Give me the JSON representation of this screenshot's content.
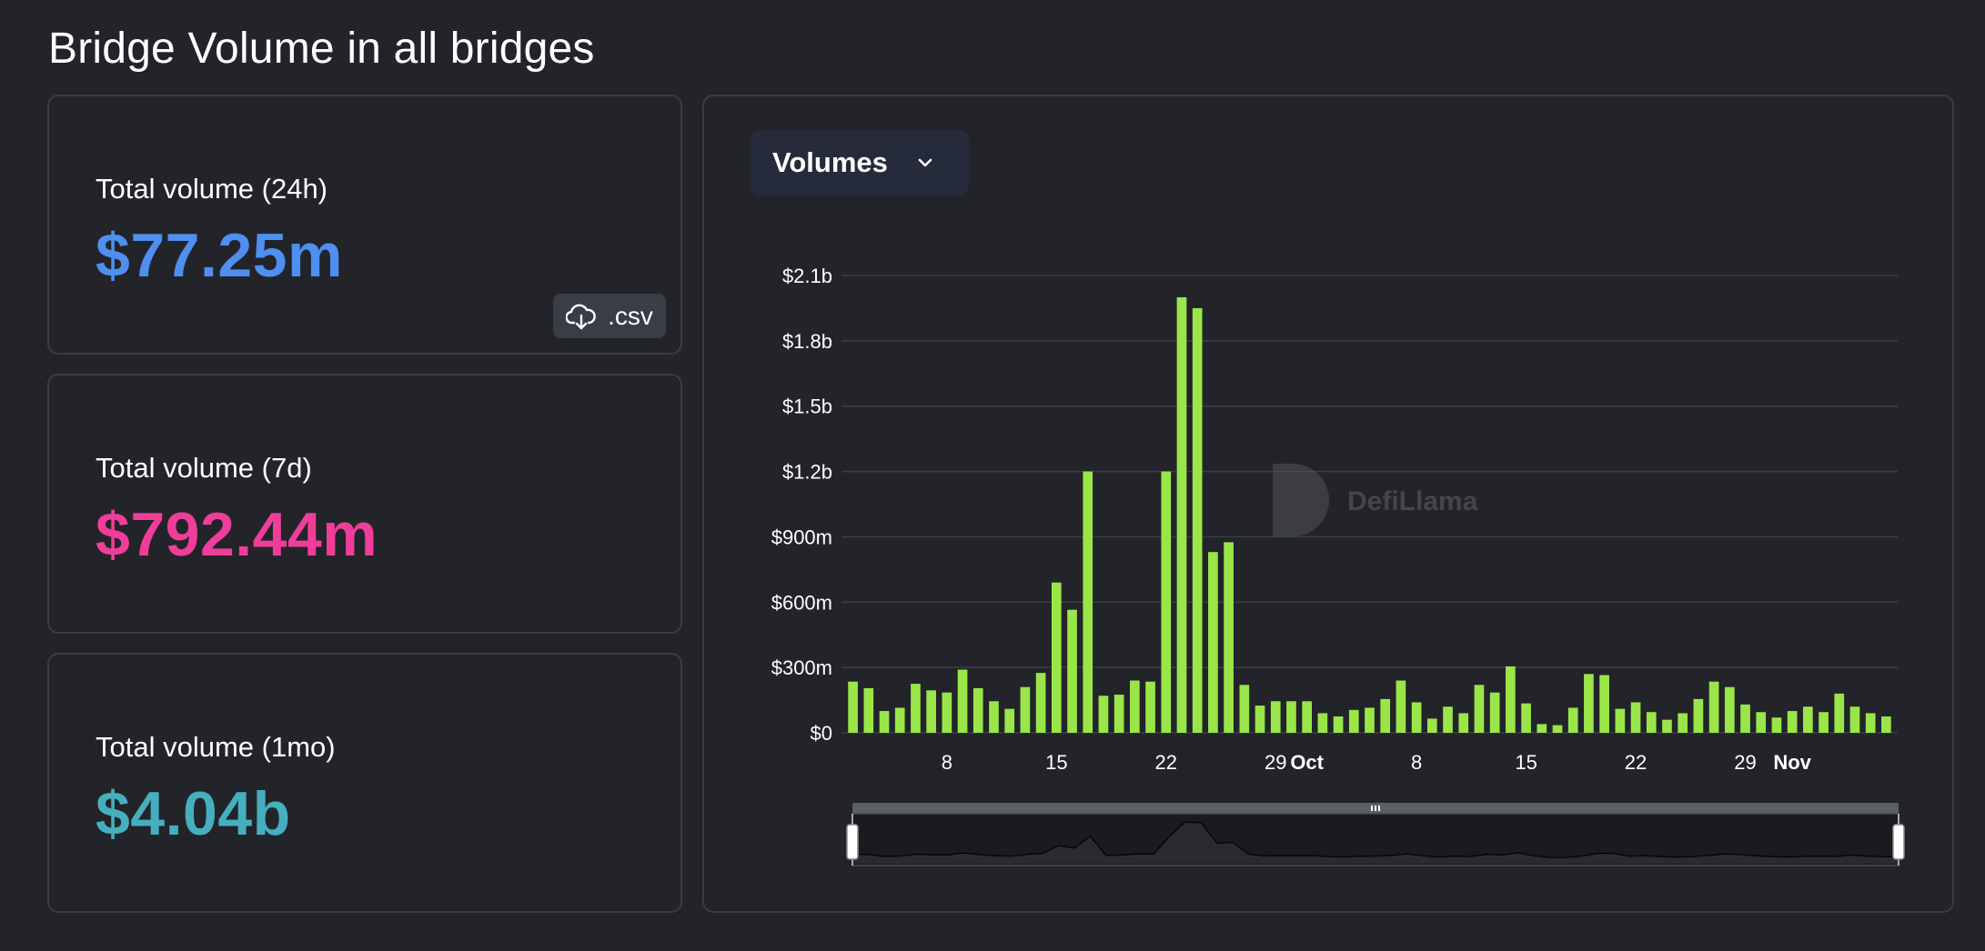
{
  "page": {
    "title": "Bridge Volume in all bridges"
  },
  "cards": [
    {
      "label": "Total volume (24h)",
      "value": "$77.25m",
      "color": "#4e8ff0"
    },
    {
      "label": "Total volume (7d)",
      "value": "$792.44m",
      "color": "#f03d9a"
    },
    {
      "label": "Total volume (1mo)",
      "value": "$4.04b",
      "color": "#45afbf"
    }
  ],
  "csv_button": {
    "label": ".csv",
    "icon": "cloud-download-icon"
  },
  "dropdown": {
    "label": "Volumes",
    "icon": "chevron-down-icon"
  },
  "watermark": {
    "text": "DefiLlama"
  },
  "chart_data": {
    "type": "bar",
    "title": "",
    "xlabel": "",
    "ylabel": "",
    "bar_color": "#9ae649",
    "ylim": [
      0,
      2100000000
    ],
    "y_ticks": [
      "$0",
      "$300m",
      "$600m",
      "$900m",
      "$1.2b",
      "$1.5b",
      "$1.8b",
      "$2.1b"
    ],
    "x_ticks": [
      {
        "index": 6,
        "label": "8"
      },
      {
        "index": 13,
        "label": "15"
      },
      {
        "index": 20,
        "label": "22"
      },
      {
        "index": 27,
        "label": "29"
      },
      {
        "index": 29,
        "label": "Oct",
        "bold": true
      },
      {
        "index": 36,
        "label": "8"
      },
      {
        "index": 43,
        "label": "15"
      },
      {
        "index": 50,
        "label": "22"
      },
      {
        "index": 57,
        "label": "29"
      },
      {
        "index": 60,
        "label": "Nov",
        "bold": true
      }
    ],
    "grid": true,
    "values": [
      235000000,
      205000000,
      100000000,
      115000000,
      225000000,
      195000000,
      185000000,
      290000000,
      205000000,
      145000000,
      110000000,
      210000000,
      275000000,
      690000000,
      565000000,
      1200000000,
      170000000,
      175000000,
      240000000,
      235000000,
      1200000000,
      2000000000,
      1950000000,
      830000000,
      875000000,
      220000000,
      125000000,
      145000000,
      145000000,
      145000000,
      90000000,
      75000000,
      105000000,
      115000000,
      155000000,
      240000000,
      140000000,
      65000000,
      120000000,
      90000000,
      220000000,
      185000000,
      305000000,
      135000000,
      40000000,
      35000000,
      115000000,
      270000000,
      265000000,
      110000000,
      140000000,
      95000000,
      60000000,
      90000000,
      155000000,
      235000000,
      210000000,
      130000000,
      95000000,
      70000000,
      100000000,
      120000000,
      95000000,
      180000000,
      120000000,
      90000000,
      75000000
    ]
  }
}
